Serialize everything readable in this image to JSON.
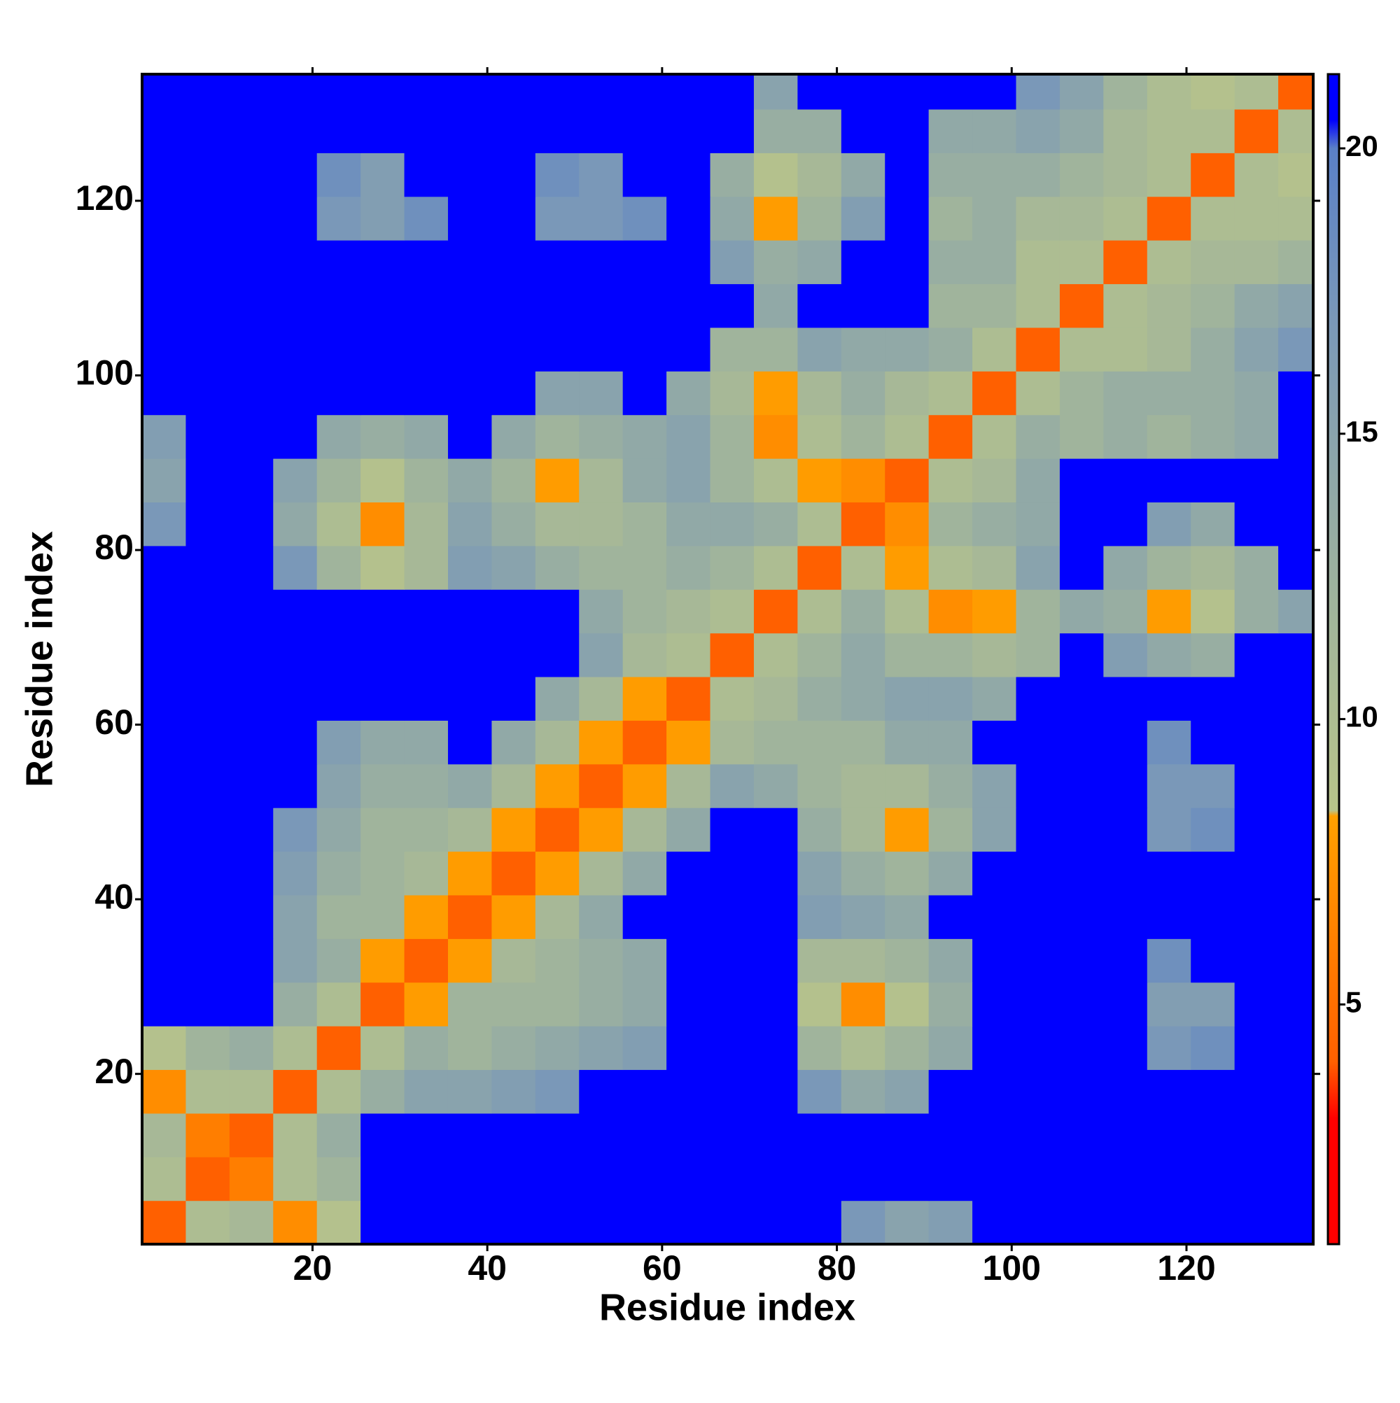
{
  "chart_data": {
    "type": "heatmap",
    "xlabel": "Residue index",
    "ylabel": "Residue index",
    "xbins": [
      0.5,
      5.5,
      10.5,
      15.5,
      20.5,
      25.5,
      30.5,
      35.5,
      40.5,
      45.5,
      50.5,
      55.5,
      60.5,
      65.5,
      70.5,
      75.5,
      80.5,
      85.5,
      90.5,
      95.5,
      100.5,
      105.5,
      110.5,
      115.5,
      120.5,
      125.5,
      130.5,
      134.5
    ],
    "ybins": [
      0.5,
      5.5,
      10.5,
      15.5,
      20.5,
      25.5,
      30.5,
      35.5,
      40.5,
      45.5,
      50.5,
      55.5,
      60.5,
      65.5,
      70.5,
      75.5,
      80.5,
      85.5,
      90.5,
      95.5,
      100.5,
      105.5,
      110.5,
      115.5,
      120.5,
      125.5,
      130.5,
      134.5
    ],
    "z": [
      [
        4,
        10,
        11,
        7,
        9,
        21,
        21,
        21,
        21,
        21,
        21,
        21,
        21,
        21,
        21,
        21,
        17,
        15,
        16,
        21,
        21,
        21,
        21,
        21,
        21,
        21,
        21
      ],
      [
        10,
        4,
        6,
        10,
        12,
        21,
        21,
        21,
        21,
        21,
        21,
        21,
        21,
        21,
        21,
        21,
        21,
        21,
        21,
        21,
        21,
        21,
        21,
        21,
        21,
        21,
        21
      ],
      [
        11,
        6,
        4,
        10,
        13,
        21,
        21,
        21,
        21,
        21,
        21,
        21,
        21,
        21,
        21,
        21,
        21,
        21,
        21,
        21,
        21,
        21,
        21,
        21,
        21,
        21,
        21
      ],
      [
        7,
        10,
        10,
        4,
        10,
        13,
        15,
        15,
        16,
        17,
        21,
        21,
        21,
        21,
        21,
        17,
        14,
        15,
        21,
        21,
        21,
        21,
        21,
        21,
        21,
        21,
        21
      ],
      [
        9,
        12,
        13,
        10,
        4,
        10,
        13,
        12,
        13,
        14,
        15,
        16,
        21,
        21,
        21,
        12,
        10,
        12,
        14,
        21,
        21,
        21,
        21,
        17,
        18,
        21,
        21
      ],
      [
        21,
        21,
        21,
        13,
        10,
        4,
        8,
        12,
        12,
        12,
        13,
        14,
        21,
        21,
        21,
        9,
        7,
        9,
        13,
        21,
        21,
        21,
        21,
        16,
        16,
        21,
        21
      ],
      [
        21,
        21,
        21,
        15,
        13,
        8,
        4,
        8,
        11,
        12,
        13,
        14,
        21,
        21,
        21,
        11,
        11,
        12,
        14,
        21,
        21,
        21,
        21,
        18,
        21,
        21,
        21
      ],
      [
        21,
        21,
        21,
        15,
        12,
        12,
        8,
        4,
        8,
        11,
        14,
        21,
        21,
        21,
        21,
        16,
        15,
        14,
        21,
        21,
        21,
        21,
        21,
        21,
        21,
        21,
        21
      ],
      [
        21,
        21,
        21,
        16,
        13,
        12,
        11,
        8,
        4,
        8,
        11,
        14,
        21,
        21,
        21,
        15,
        13,
        12,
        14,
        21,
        21,
        21,
        21,
        21,
        21,
        21,
        21
      ],
      [
        21,
        21,
        21,
        17,
        14,
        12,
        12,
        11,
        8,
        4,
        8,
        11,
        14,
        21,
        21,
        13,
        11,
        8,
        12,
        15,
        21,
        21,
        21,
        17,
        18,
        21,
        21
      ],
      [
        21,
        21,
        21,
        21,
        15,
        13,
        13,
        14,
        11,
        8,
        4,
        8,
        11,
        15,
        14,
        12,
        11,
        11,
        13,
        15,
        21,
        21,
        21,
        17,
        17,
        21,
        21
      ],
      [
        21,
        21,
        21,
        21,
        16,
        14,
        14,
        21,
        14,
        11,
        8,
        4,
        8,
        11,
        12,
        12,
        12,
        14,
        14,
        21,
        21,
        21,
        21,
        18,
        21,
        21,
        21
      ],
      [
        21,
        21,
        21,
        21,
        21,
        21,
        21,
        21,
        21,
        14,
        11,
        8,
        4,
        10,
        11,
        13,
        14,
        15,
        15,
        14,
        21,
        21,
        21,
        21,
        21,
        21,
        21
      ],
      [
        21,
        21,
        21,
        21,
        21,
        21,
        21,
        21,
        21,
        21,
        15,
        11,
        10,
        4,
        10,
        12,
        14,
        12,
        12,
        11,
        12,
        21,
        16,
        14,
        13,
        21,
        21
      ],
      [
        21,
        21,
        21,
        21,
        21,
        21,
        21,
        21,
        21,
        21,
        14,
        12,
        11,
        10,
        4,
        10,
        13,
        10,
        7,
        8,
        12,
        14,
        13,
        8,
        9,
        13,
        15
      ],
      [
        21,
        21,
        21,
        17,
        12,
        9,
        11,
        16,
        15,
        13,
        12,
        12,
        13,
        12,
        10,
        4,
        10,
        8,
        10,
        11,
        15,
        21,
        14,
        12,
        11,
        13,
        21
      ],
      [
        17,
        21,
        21,
        14,
        10,
        7,
        11,
        15,
        13,
        11,
        11,
        12,
        14,
        14,
        13,
        10,
        4,
        7,
        12,
        13,
        14,
        21,
        21,
        16,
        14,
        21,
        21
      ],
      [
        15,
        21,
        21,
        15,
        12,
        9,
        12,
        14,
        12,
        8,
        11,
        14,
        15,
        12,
        10,
        8,
        7,
        4,
        10,
        11,
        14,
        21,
        21,
        21,
        21,
        21,
        21
      ],
      [
        16,
        21,
        21,
        21,
        14,
        13,
        14,
        21,
        14,
        12,
        13,
        14,
        15,
        12,
        7,
        10,
        12,
        10,
        4,
        10,
        13,
        12,
        13,
        12,
        13,
        14,
        21
      ],
      [
        21,
        21,
        21,
        21,
        21,
        21,
        21,
        21,
        21,
        15,
        15,
        21,
        14,
        11,
        8,
        11,
        13,
        11,
        10,
        4,
        10,
        12,
        13,
        13,
        13,
        14,
        21
      ],
      [
        21,
        21,
        21,
        21,
        21,
        21,
        21,
        21,
        21,
        21,
        21,
        21,
        21,
        12,
        12,
        15,
        14,
        14,
        13,
        10,
        4,
        10,
        10,
        11,
        13,
        15,
        17
      ],
      [
        21,
        21,
        21,
        21,
        21,
        21,
        21,
        21,
        21,
        21,
        21,
        21,
        21,
        21,
        14,
        21,
        21,
        21,
        12,
        12,
        10,
        4,
        10,
        11,
        12,
        14,
        15
      ],
      [
        21,
        21,
        21,
        21,
        21,
        21,
        21,
        21,
        21,
        21,
        21,
        21,
        21,
        16,
        13,
        14,
        21,
        21,
        13,
        13,
        10,
        10,
        4,
        10,
        11,
        11,
        12
      ],
      [
        21,
        21,
        21,
        21,
        17,
        16,
        18,
        21,
        21,
        17,
        17,
        18,
        21,
        14,
        8,
        12,
        16,
        21,
        12,
        13,
        11,
        11,
        10,
        4,
        10,
        10,
        10
      ],
      [
        21,
        21,
        21,
        21,
        18,
        16,
        21,
        21,
        21,
        18,
        17,
        21,
        21,
        13,
        9,
        11,
        14,
        21,
        13,
        13,
        13,
        12,
        11,
        10,
        4,
        10,
        9
      ],
      [
        21,
        21,
        21,
        21,
        21,
        21,
        21,
        21,
        21,
        21,
        21,
        21,
        21,
        21,
        13,
        13,
        21,
        21,
        14,
        14,
        15,
        14,
        11,
        10,
        10,
        4,
        10
      ],
      [
        21,
        21,
        21,
        21,
        21,
        21,
        21,
        21,
        21,
        21,
        21,
        21,
        21,
        21,
        15,
        21,
        21,
        21,
        21,
        21,
        17,
        15,
        12,
        10,
        9,
        10,
        4
      ]
    ],
    "xlim": [
      0.5,
      134.5
    ],
    "ylim": [
      0.5,
      134.5
    ],
    "xticks": [
      20,
      40,
      60,
      80,
      100,
      120
    ],
    "yticks": [
      20,
      40,
      60,
      80,
      100,
      120
    ],
    "colorbar": {
      "lim": [
        0.8,
        21.3
      ],
      "ticks": [
        5,
        10,
        15,
        20
      ]
    },
    "colorscale": [
      [
        0.8,
        "#ff0000"
      ],
      [
        3,
        "#ff0000"
      ],
      [
        4,
        "#ff6000"
      ],
      [
        8.3,
        "#ffa000"
      ],
      [
        8.4,
        "#b8c48a"
      ],
      [
        12,
        "#a0b49c"
      ],
      [
        17,
        "#7a98b8"
      ],
      [
        20,
        "#5a80c8"
      ],
      [
        20.5,
        "#0000ff"
      ],
      [
        21.3,
        "#0000ff"
      ]
    ]
  }
}
